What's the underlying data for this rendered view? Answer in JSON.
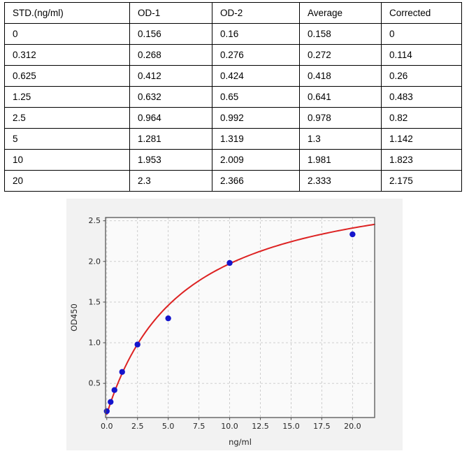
{
  "table": {
    "headers": [
      "STD.(ng/ml)",
      "OD-1",
      "OD-2",
      "Average",
      "Corrected"
    ],
    "rows": [
      [
        "0",
        "0.156",
        "0.16",
        "0.158",
        "0"
      ],
      [
        "0.312",
        "0.268",
        "0.276",
        "0.272",
        "0.114"
      ],
      [
        "0.625",
        "0.412",
        "0.424",
        "0.418",
        "0.26"
      ],
      [
        "1.25",
        "0.632",
        "0.65",
        "0.641",
        "0.483"
      ],
      [
        "2.5",
        "0.964",
        "0.992",
        "0.978",
        "0.82"
      ],
      [
        "5",
        "1.281",
        "1.319",
        "1.3",
        "1.142"
      ],
      [
        "10",
        "1.953",
        "2.009",
        "1.981",
        "1.823"
      ],
      [
        "20",
        "2.3",
        "2.366",
        "2.333",
        "2.175"
      ]
    ]
  },
  "chart_data": {
    "type": "scatter",
    "title": "",
    "xlabel": "ng/ml",
    "ylabel": "OD450",
    "xlim": [
      -0.1,
      21.8
    ],
    "ylim": [
      0.08,
      2.54
    ],
    "x_ticks": [
      0.0,
      2.5,
      5.0,
      7.5,
      10.0,
      12.5,
      15.0,
      17.5,
      20.0
    ],
    "x_tick_labels": [
      "0.0",
      "2.5",
      "5.0",
      "7.5",
      "10.0",
      "12.5",
      "15.0",
      "17.5",
      "20.0"
    ],
    "y_ticks": [
      0.5,
      1.0,
      1.5,
      2.0,
      2.5
    ],
    "y_tick_labels": [
      "0.5",
      "1.0",
      "1.5",
      "2.0",
      "2.5"
    ],
    "grid": true,
    "legend": false,
    "points": {
      "name": "standards-average-od",
      "x": [
        0,
        0.312,
        0.625,
        1.25,
        2.5,
        5,
        10,
        20
      ],
      "y": [
        0.158,
        0.272,
        0.418,
        0.641,
        0.978,
        1.3,
        1.981,
        2.333
      ]
    },
    "fit_curve": {
      "model": "4PL",
      "params": {
        "a": 0.12,
        "b": 1.0,
        "c": 6.2,
        "d": 3.12
      },
      "x_range": [
        0,
        21.8
      ]
    },
    "colors": {
      "points": "#1414cc",
      "curve": "#dd2222",
      "grid": "#c8c8c8",
      "spine": "#555555",
      "tick_text": "#262626",
      "figure_bg": "#f2f2f2",
      "axes_bg": "#fafafa"
    }
  }
}
